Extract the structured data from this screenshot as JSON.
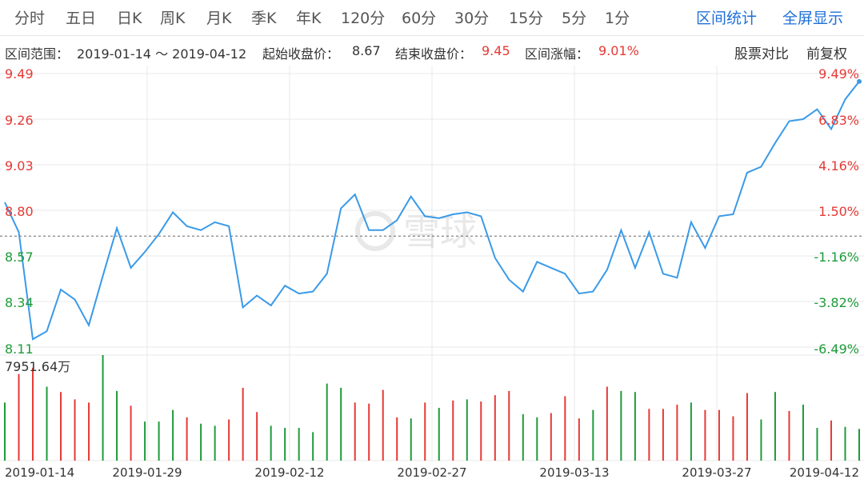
{
  "tabs": [
    "分时",
    "五日",
    "日K",
    "周K",
    "月K",
    "季K",
    "年K",
    "120分",
    "60分",
    "30分",
    "15分",
    "5分",
    "1分"
  ],
  "links": {
    "range_stats": "区间统计",
    "fullscreen": "全屏显示"
  },
  "info": {
    "range_label": "区间范围：",
    "range_value": "2019-01-14 ～ 2019-04-12",
    "start_label": "起始收盘价：",
    "start_value": "8.67",
    "end_label": "结束收盘价：",
    "end_value": "9.45",
    "change_label": "区间涨幅：",
    "change_value": "9.01%",
    "compare": "股票对比",
    "adjust": "前复权"
  },
  "watermark": "雪球",
  "colors": {
    "line": "#3a9ae8",
    "up": "#e53935",
    "down": "#1e9b3a",
    "grid": "#e8e8e8",
    "baseline": "#666666"
  },
  "chart_data": {
    "type": "line",
    "title": "",
    "x_ticks": [
      "2019-01-14",
      "2019-01-29",
      "2019-02-12",
      "2019-02-27",
      "2019-03-13",
      "2019-03-27",
      "2019-04-12"
    ],
    "y_ticks_left": [
      "9.49",
      "9.26",
      "9.03",
      "8.80",
      "8.57",
      "8.34",
      "8.11"
    ],
    "y_ticks_right": [
      "9.49%",
      "6.83%",
      "4.16%",
      "1.50%",
      "-1.16%",
      "-3.82%",
      "-6.49%"
    ],
    "ylim": [
      8.11,
      9.49
    ],
    "baseline": 8.67,
    "price_series": {
      "name": "",
      "values": [
        8.84,
        8.69,
        8.15,
        8.19,
        8.4,
        8.35,
        8.22,
        8.47,
        8.71,
        8.51,
        8.59,
        8.68,
        8.79,
        8.72,
        8.7,
        8.74,
        8.72,
        8.31,
        8.37,
        8.32,
        8.42,
        8.38,
        8.39,
        8.48,
        8.81,
        8.88,
        8.7,
        8.7,
        8.75,
        8.87,
        8.77,
        8.76,
        8.78,
        8.79,
        8.77,
        8.56,
        8.45,
        8.39,
        8.54,
        8.51,
        8.48,
        8.38,
        8.39,
        8.5,
        8.7,
        8.51,
        8.69,
        8.48,
        8.46,
        8.74,
        8.61,
        8.77,
        8.78,
        8.99,
        9.02,
        9.14,
        9.25,
        9.26,
        9.31,
        9.21,
        9.36,
        9.45
      ]
    },
    "volume_max_label": "7951.64万",
    "volume_series": {
      "name": "",
      "values": [
        0.55,
        0.82,
        0.88,
        0.7,
        0.65,
        0.58,
        0.55,
        1.0,
        0.66,
        0.52,
        0.37,
        0.37,
        0.48,
        0.41,
        0.35,
        0.33,
        0.39,
        0.69,
        0.46,
        0.33,
        0.31,
        0.31,
        0.27,
        0.73,
        0.69,
        0.55,
        0.54,
        0.67,
        0.41,
        0.4,
        0.55,
        0.5,
        0.57,
        0.58,
        0.56,
        0.62,
        0.66,
        0.44,
        0.41,
        0.45,
        0.61,
        0.4,
        0.48,
        0.7,
        0.66,
        0.65,
        0.49,
        0.49,
        0.53,
        0.55,
        0.48,
        0.48,
        0.42,
        0.64,
        0.39,
        0.65,
        0.47,
        0.53,
        0.31,
        0.38,
        0.32,
        0.3
      ],
      "up": [
        0,
        1,
        1,
        0,
        1,
        1,
        1,
        0,
        0,
        1,
        0,
        0,
        0,
        1,
        0,
        0,
        1,
        1,
        1,
        0,
        0,
        0,
        0,
        0,
        0,
        1,
        1,
        1,
        1,
        0,
        1,
        0,
        1,
        0,
        1,
        1,
        1,
        0,
        0,
        1,
        1,
        1,
        0,
        1,
        0,
        0,
        1,
        1,
        1,
        0,
        1,
        1,
        1,
        1,
        0,
        0,
        1,
        0,
        0,
        1,
        0,
        0
      ]
    }
  }
}
